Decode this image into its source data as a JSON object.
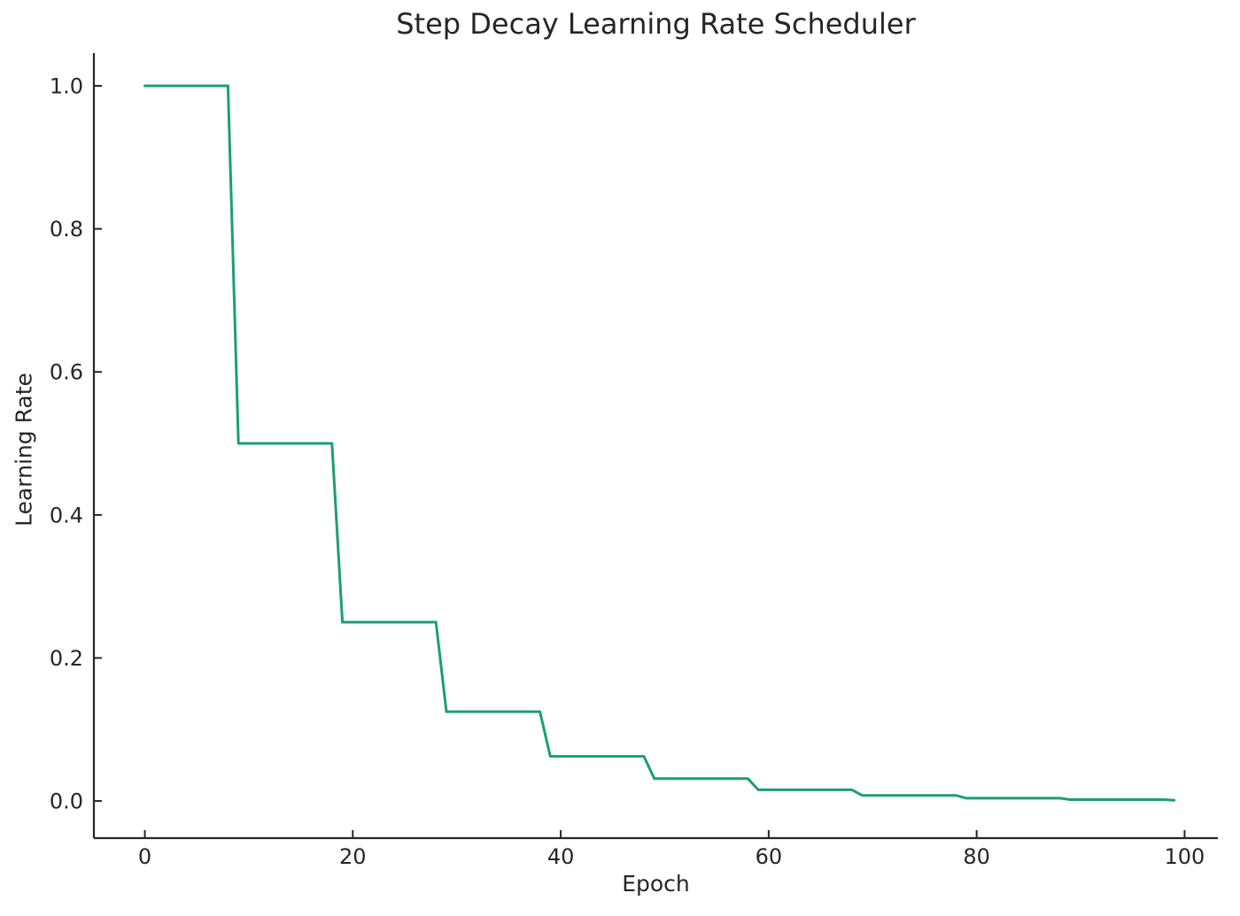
{
  "figure": {
    "background": "#ffffff"
  },
  "chart_data": {
    "type": "line",
    "title": "Step Decay Learning Rate Scheduler",
    "xlabel": "Epoch",
    "ylabel": "Learning Rate",
    "grid": false,
    "legend": "none",
    "xlim": [
      -4.9,
      103.2
    ],
    "ylim": [
      -0.0519,
      1.0458
    ],
    "xticks": [
      0,
      20,
      40,
      60,
      80,
      100
    ],
    "xtick_labels": [
      "0",
      "20",
      "40",
      "60",
      "80",
      "100"
    ],
    "yticks": [
      0.0,
      0.2,
      0.4,
      0.6,
      0.8,
      1.0
    ],
    "ytick_labels": [
      "0.0",
      "0.2",
      "0.4",
      "0.6",
      "0.8",
      "1.0"
    ],
    "axis_color": "#262626",
    "text_color": "#262626",
    "x": [
      0,
      1,
      2,
      3,
      4,
      5,
      6,
      7,
      8,
      9,
      10,
      11,
      12,
      13,
      14,
      15,
      16,
      17,
      18,
      19,
      20,
      21,
      22,
      23,
      24,
      25,
      26,
      27,
      28,
      29,
      30,
      31,
      32,
      33,
      34,
      35,
      36,
      37,
      38,
      39,
      40,
      41,
      42,
      43,
      44,
      45,
      46,
      47,
      48,
      49,
      50,
      51,
      52,
      53,
      54,
      55,
      56,
      57,
      58,
      59,
      60,
      61,
      62,
      63,
      64,
      65,
      66,
      67,
      68,
      69,
      70,
      71,
      72,
      73,
      74,
      75,
      76,
      77,
      78,
      79,
      80,
      81,
      82,
      83,
      84,
      85,
      86,
      87,
      88,
      89,
      90,
      91,
      92,
      93,
      94,
      95,
      96,
      97,
      98,
      99
    ],
    "series": [
      {
        "name": "learning_rate",
        "color": "#1b9e77",
        "values": [
          1.0,
          1.0,
          1.0,
          1.0,
          1.0,
          1.0,
          1.0,
          1.0,
          1.0,
          0.5,
          0.5,
          0.5,
          0.5,
          0.5,
          0.5,
          0.5,
          0.5,
          0.5,
          0.5,
          0.25,
          0.25,
          0.25,
          0.25,
          0.25,
          0.25,
          0.25,
          0.25,
          0.25,
          0.25,
          0.125,
          0.125,
          0.125,
          0.125,
          0.125,
          0.125,
          0.125,
          0.125,
          0.125,
          0.125,
          0.0625,
          0.0625,
          0.0625,
          0.0625,
          0.0625,
          0.0625,
          0.0625,
          0.0625,
          0.0625,
          0.0625,
          0.03125,
          0.03125,
          0.03125,
          0.03125,
          0.03125,
          0.03125,
          0.03125,
          0.03125,
          0.03125,
          0.03125,
          0.015625,
          0.015625,
          0.015625,
          0.015625,
          0.015625,
          0.015625,
          0.015625,
          0.015625,
          0.015625,
          0.015625,
          0.0078125,
          0.0078125,
          0.0078125,
          0.0078125,
          0.0078125,
          0.0078125,
          0.0078125,
          0.0078125,
          0.0078125,
          0.0078125,
          0.00390625,
          0.00390625,
          0.00390625,
          0.00390625,
          0.00390625,
          0.00390625,
          0.00390625,
          0.00390625,
          0.00390625,
          0.00390625,
          0.001953125,
          0.001953125,
          0.001953125,
          0.001953125,
          0.001953125,
          0.001953125,
          0.001953125,
          0.001953125,
          0.001953125,
          0.001953125,
          0.0009765625
        ]
      }
    ]
  }
}
